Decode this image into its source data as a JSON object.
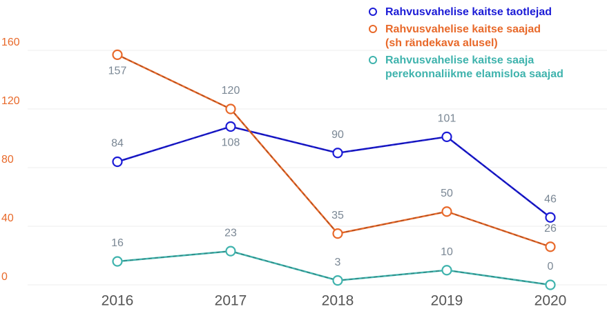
{
  "chart_data": {
    "type": "line",
    "categories": [
      "2016",
      "2017",
      "2018",
      "2019",
      "2020"
    ],
    "series": [
      {
        "name": "Rahvusvahelise kaitse taotlejad",
        "color": "#1b1bd6",
        "values": [
          84,
          108,
          90,
          101,
          46
        ]
      },
      {
        "name": "Rahvusvahelise kaitse saajad\n(sh rändekava alusel)",
        "color": "#e8692a",
        "values": [
          157,
          120,
          35,
          50,
          26
        ]
      },
      {
        "name": "Rahvusvahelise kaitse saaja\nperekonnaliikme elamisloa saajad",
        "color": "#3fb3ad",
        "values": [
          16,
          23,
          3,
          10,
          0
        ]
      }
    ],
    "ylim": [
      0,
      160
    ],
    "yticks": [
      0,
      40,
      80,
      120,
      160
    ],
    "ytick_color": "#e8692a",
    "grid": true,
    "legend": "top-right"
  }
}
